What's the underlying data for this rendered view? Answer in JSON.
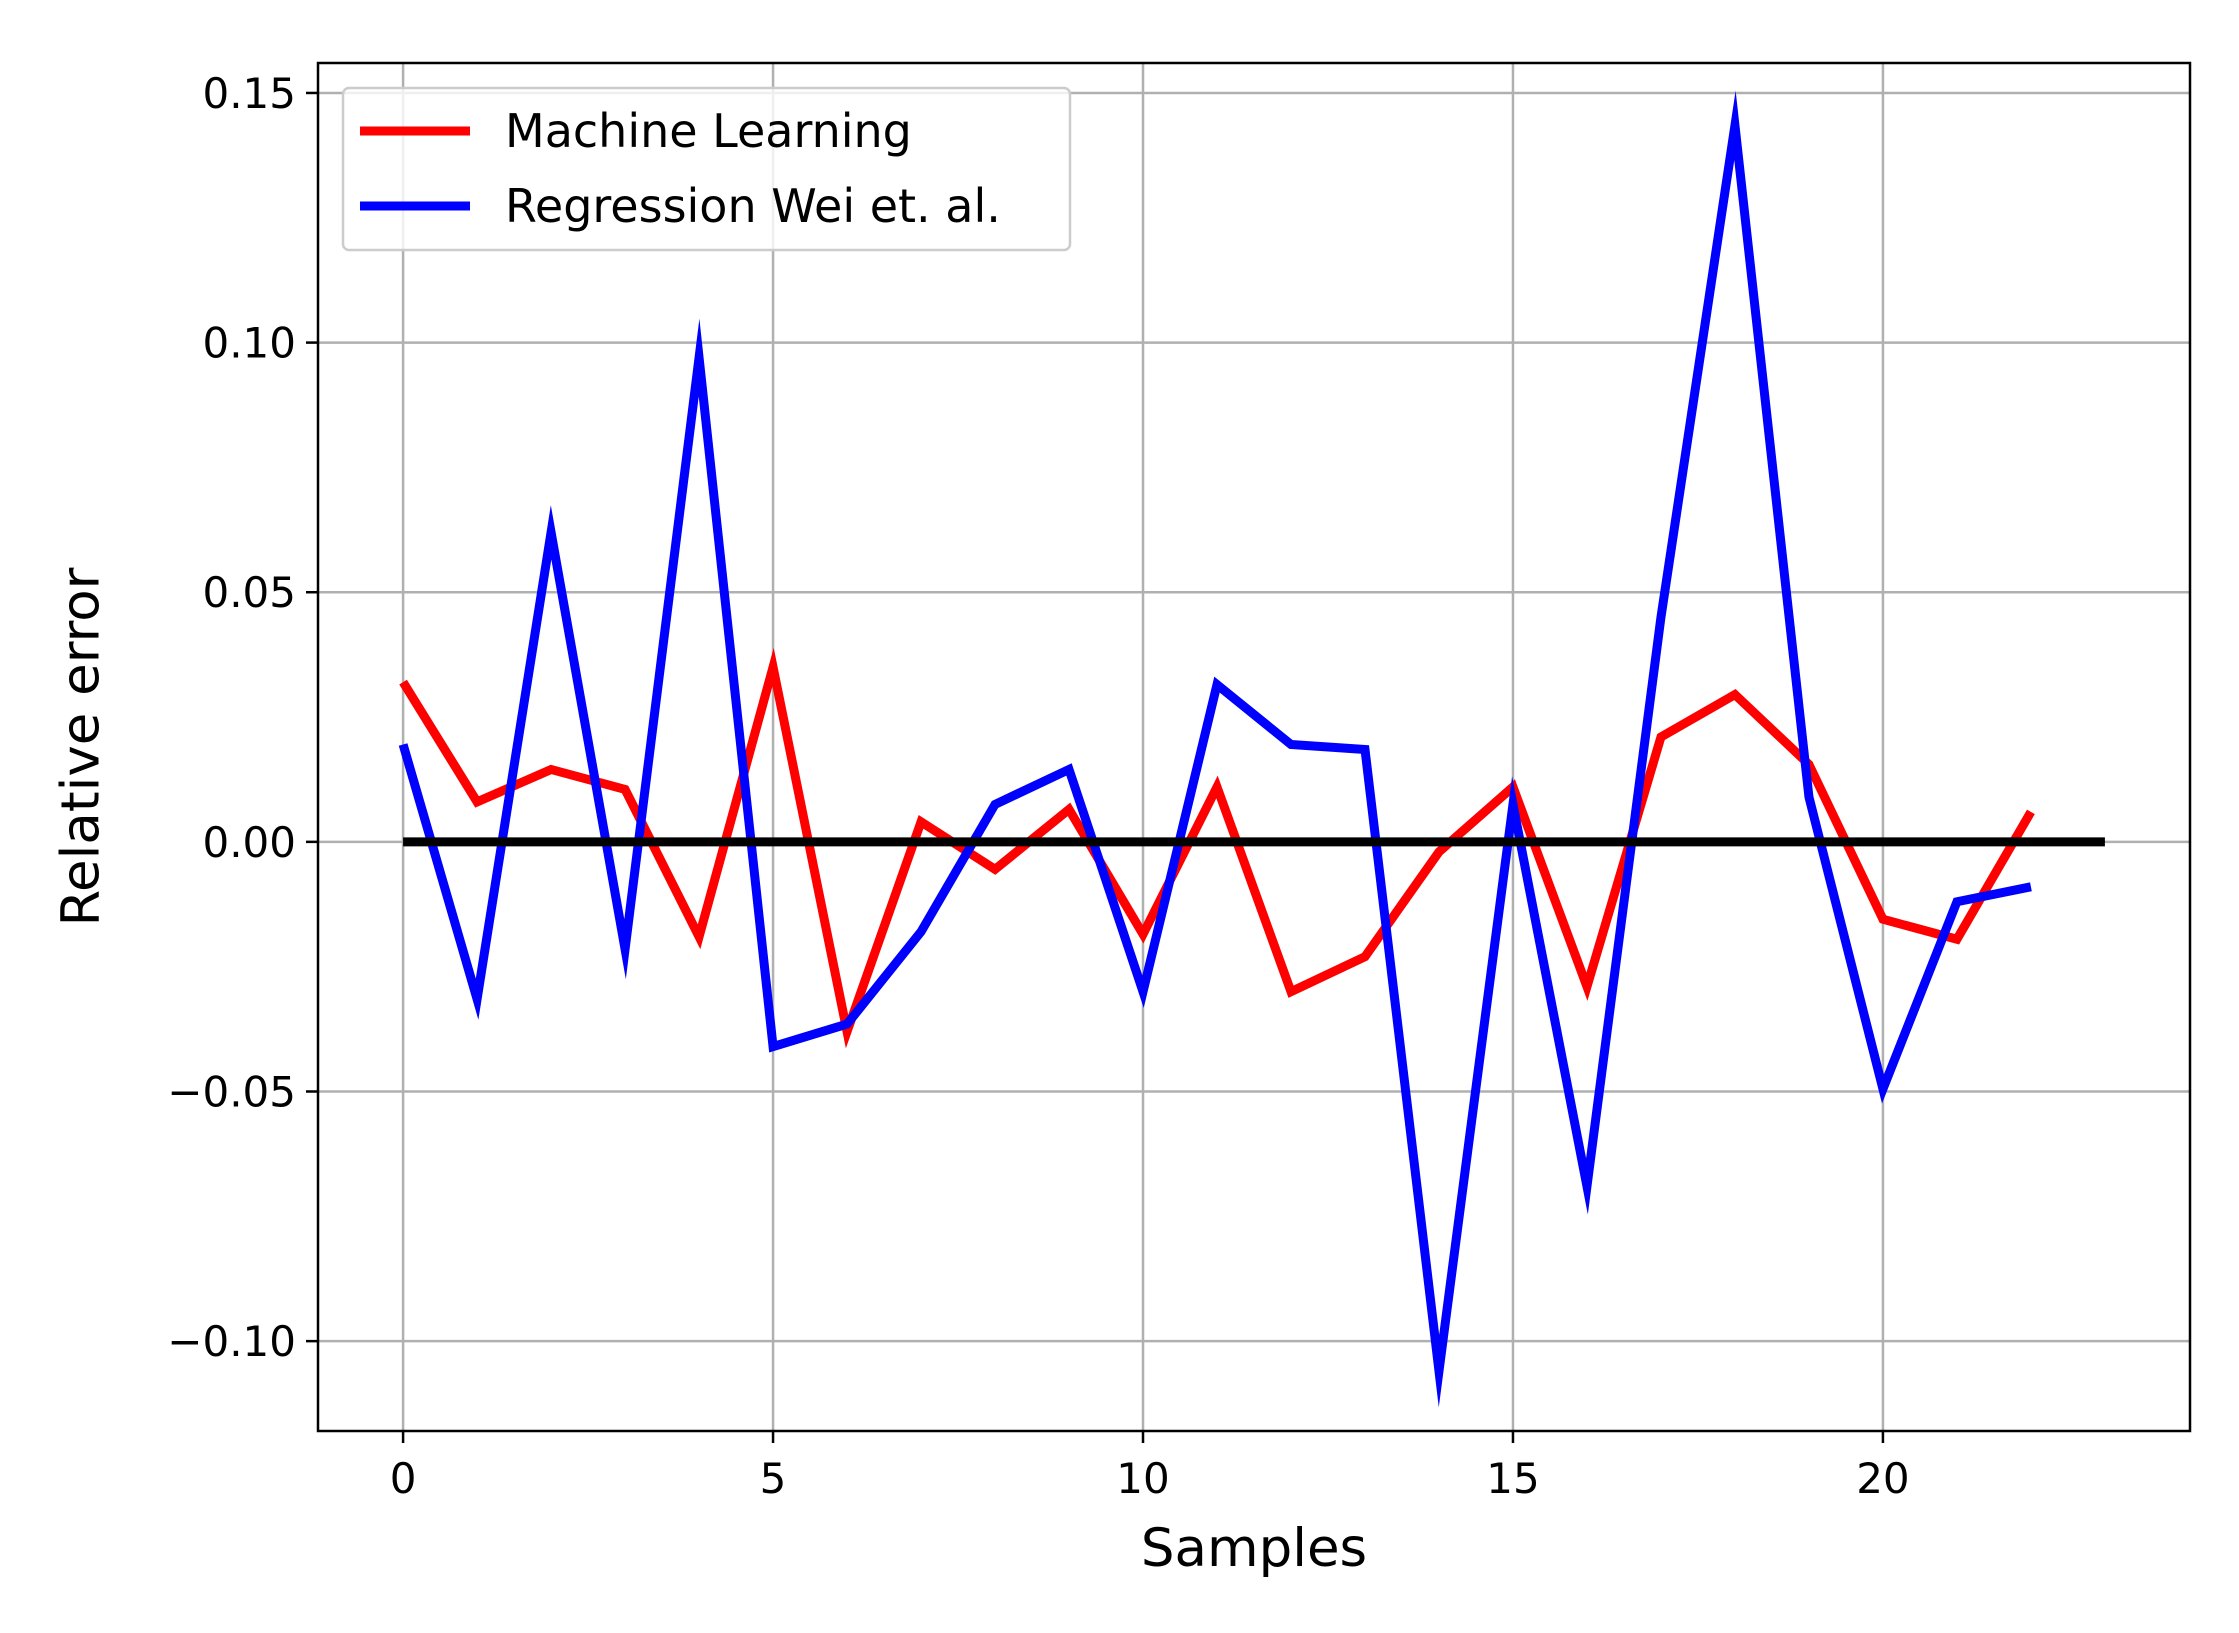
{
  "chart_data": {
    "type": "line",
    "title": "",
    "xlabel": "Samples",
    "ylabel": "Relative error",
    "xlim": [
      -1.15,
      24.15
    ],
    "ylim": [
      -0.118,
      0.156
    ],
    "grid": true,
    "legend_position": "top-left",
    "x_ticks": [
      0,
      5,
      10,
      15,
      20
    ],
    "x_tick_labels": [
      "0",
      "5",
      "10",
      "15",
      "20"
    ],
    "y_ticks": [
      -0.1,
      -0.05,
      0.0,
      0.05,
      0.1,
      0.15
    ],
    "y_tick_labels": [
      "−0.10",
      "−0.05",
      "0.00",
      "0.05",
      "0.10",
      "0.15"
    ],
    "x": [
      0,
      1,
      2,
      3,
      4,
      5,
      6,
      7,
      8,
      9,
      10,
      11,
      12,
      13,
      14,
      15,
      16,
      17,
      18,
      19,
      20,
      21,
      22
    ],
    "series": [
      {
        "name": "Machine Learning",
        "color": "#ff0000",
        "values": [
          0.032,
          0.008,
          0.0145,
          0.0105,
          -0.019,
          0.035,
          -0.038,
          0.004,
          -0.0055,
          0.0065,
          -0.0185,
          0.011,
          -0.03,
          -0.023,
          -0.002,
          0.011,
          -0.029,
          0.021,
          0.0295,
          0.0155,
          -0.0155,
          -0.0195,
          0.006
        ]
      },
      {
        "name": "Regression Wei et. al.",
        "color": "#0000ff",
        "values": [
          0.0195,
          -0.0315,
          0.062,
          -0.0215,
          0.097,
          -0.041,
          -0.0365,
          -0.018,
          0.0075,
          0.0145,
          -0.03,
          0.0315,
          0.0195,
          0.0185,
          -0.106,
          0.0075,
          -0.069,
          0.045,
          0.1435,
          0.009,
          -0.0495,
          -0.012,
          -0.009
        ]
      }
    ],
    "reference_line": {
      "name": "zero line",
      "color": "#000000",
      "x": [
        0,
        23
      ],
      "y": [
        0,
        0
      ]
    }
  }
}
